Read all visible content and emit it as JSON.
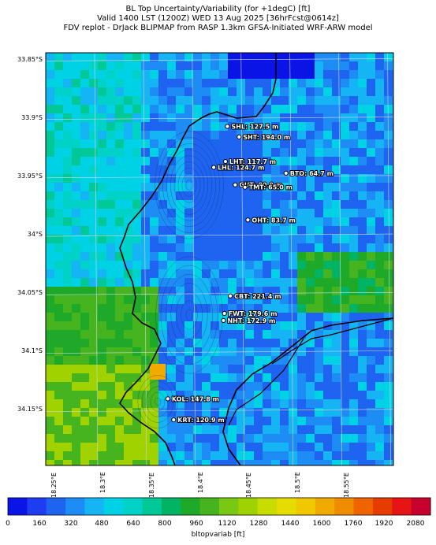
{
  "title": {
    "line1": "BL Top Uncertainty/Variability (for +1degC) [ft]",
    "line2": "Valid 1400 LST (1200Z) WED 13 Aug 2025 [36hrFcst@0614z]",
    "line3": "FDV replot - DrJack BLIPMAP from RASP 1.3km GFSA-Initiated WRF-ARW model"
  },
  "lat_labels": [
    "33.85°S",
    "33.9°S",
    "33.95°S",
    "34°S",
    "34.05°S",
    "34.1°S",
    "34.15°S"
  ],
  "lon_labels": [
    "18.25°E",
    "18.3°E",
    "18.35°E",
    "18.4°E",
    "18.45°E",
    "18.5°E",
    "18.55°E"
  ],
  "stations": [
    {
      "code": "SHL",
      "value": "127.5 m",
      "label": "SHL: 127.5 m",
      "lat": -33.906,
      "lon": 18.386
    },
    {
      "code": "SHT",
      "value": "194.0 m",
      "label": "SHT: 194.0 m",
      "lat": -33.915,
      "lon": 18.398
    },
    {
      "code": "LHT",
      "value": "117.7 m",
      "label": "LHT: 117.7 m",
      "lat": -33.936,
      "lon": 18.384
    },
    {
      "code": "LHL",
      "value": "124.7 m",
      "label": "LHL: 124.7 m",
      "lat": -33.941,
      "lon": 18.372
    },
    {
      "code": "BTO",
      "value": "64.7 m",
      "label": "BTO: 64.7 m",
      "lat": -33.946,
      "lon": 18.446
    },
    {
      "code": "GUT",
      "value": "80.9 m",
      "label": "GUT: 80.9 m",
      "lat": -33.956,
      "lon": 18.394
    },
    {
      "code": "TMT",
      "value": "65.0 m",
      "label": "TMT: 65.0 m",
      "lat": -33.958,
      "lon": 18.404
    },
    {
      "code": "OHT",
      "value": "83.7 m",
      "label": "OHT: 83.7 m",
      "lat": -33.986,
      "lon": 18.407
    },
    {
      "code": "CBT",
      "value": "221.4 m",
      "label": "CBT: 221.4 m",
      "lat": -34.051,
      "lon": 18.389
    },
    {
      "code": "FWT",
      "value": "179.6 m",
      "label": "FWT: 179.6 m",
      "lat": -34.066,
      "lon": 18.383
    },
    {
      "code": "NHT",
      "value": "172.9 m",
      "label": "NHT: 172.9 m",
      "lat": -34.072,
      "lon": 18.382
    },
    {
      "code": "KOL",
      "value": "147.8 m",
      "label": "KOL: 147.8 m",
      "lat": -34.139,
      "lon": 18.325
    },
    {
      "code": "KRT",
      "value": "120.9 m",
      "label": "KRT: 120.9 m",
      "lat": -34.157,
      "lon": 18.331
    }
  ],
  "colorbar": {
    "label": "bltopvariab [ft]",
    "ticks": [
      "0",
      "160",
      "320",
      "480",
      "640",
      "800",
      "960",
      "1120",
      "1280",
      "1440",
      "1600",
      "1760",
      "1920",
      "2080"
    ],
    "colors": [
      "#0a14e6",
      "#1e3cf0",
      "#1e64f0",
      "#1e8cf5",
      "#14b4f5",
      "#00d2e6",
      "#00d2c8",
      "#00c896",
      "#00b464",
      "#1eaa28",
      "#46b41e",
      "#78c814",
      "#a0d200",
      "#c8dc00",
      "#e6dc00",
      "#f0c800",
      "#f0aa00",
      "#f08c00",
      "#f06400",
      "#e63c00",
      "#e61414",
      "#c8002d"
    ]
  }
}
